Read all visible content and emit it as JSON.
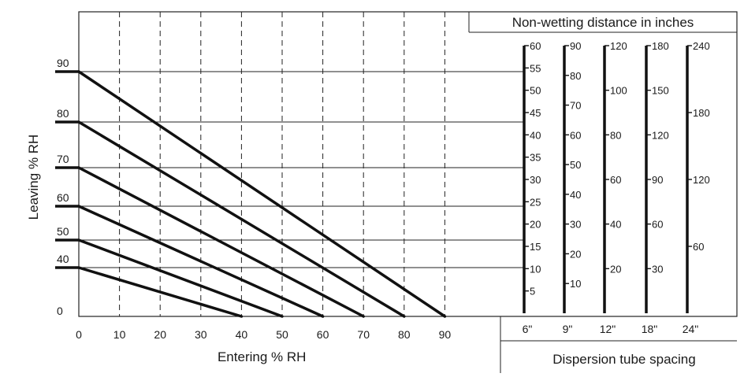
{
  "chart_data": {
    "type": "line",
    "xlabel": "Entering % RH",
    "ylabel": "Leaving % RH",
    "xlim": [
      0,
      90
    ],
    "x_ticks": [
      "0",
      "10",
      "20",
      "30",
      "40",
      "50",
      "60",
      "70",
      "80",
      "90"
    ],
    "y_ticks": [
      "90",
      "80",
      "70",
      "60",
      "50",
      "40",
      "0"
    ],
    "grid": "dashed vertical lines every 10 % RH",
    "series": [
      {
        "start_leaving": 90,
        "end_entering": 90
      },
      {
        "start_leaving": 80,
        "end_entering": 80
      },
      {
        "start_leaving": 70,
        "end_entering": 70
      },
      {
        "start_leaving": 60,
        "end_entering": 60
      },
      {
        "start_leaving": 50,
        "end_entering": 50
      },
      {
        "start_leaving": 40,
        "end_entering": 40
      }
    ],
    "nonwetting_title": "Non-wetting distance in inches",
    "spacing_title": "Dispersion tube spacing",
    "scales": [
      {
        "spacing": "6\"",
        "max": 60,
        "ticks": [
          "60",
          "55",
          "50",
          "45",
          "40",
          "35",
          "30",
          "25",
          "20",
          "15",
          "10",
          "5"
        ]
      },
      {
        "spacing": "9\"",
        "max": 90,
        "ticks": [
          "90",
          "80",
          "70",
          "60",
          "50",
          "40",
          "30",
          "20",
          "10"
        ]
      },
      {
        "spacing": "12\"",
        "max": 120,
        "ticks": [
          "120",
          "100",
          "80",
          "60",
          "40",
          "20"
        ]
      },
      {
        "spacing": "18\"",
        "max": 180,
        "ticks": [
          "180",
          "150",
          "120",
          "90",
          "60",
          "30"
        ]
      },
      {
        "spacing": "24\"",
        "max": 240,
        "ticks": [
          "240",
          "180",
          "120",
          "60"
        ]
      }
    ]
  }
}
